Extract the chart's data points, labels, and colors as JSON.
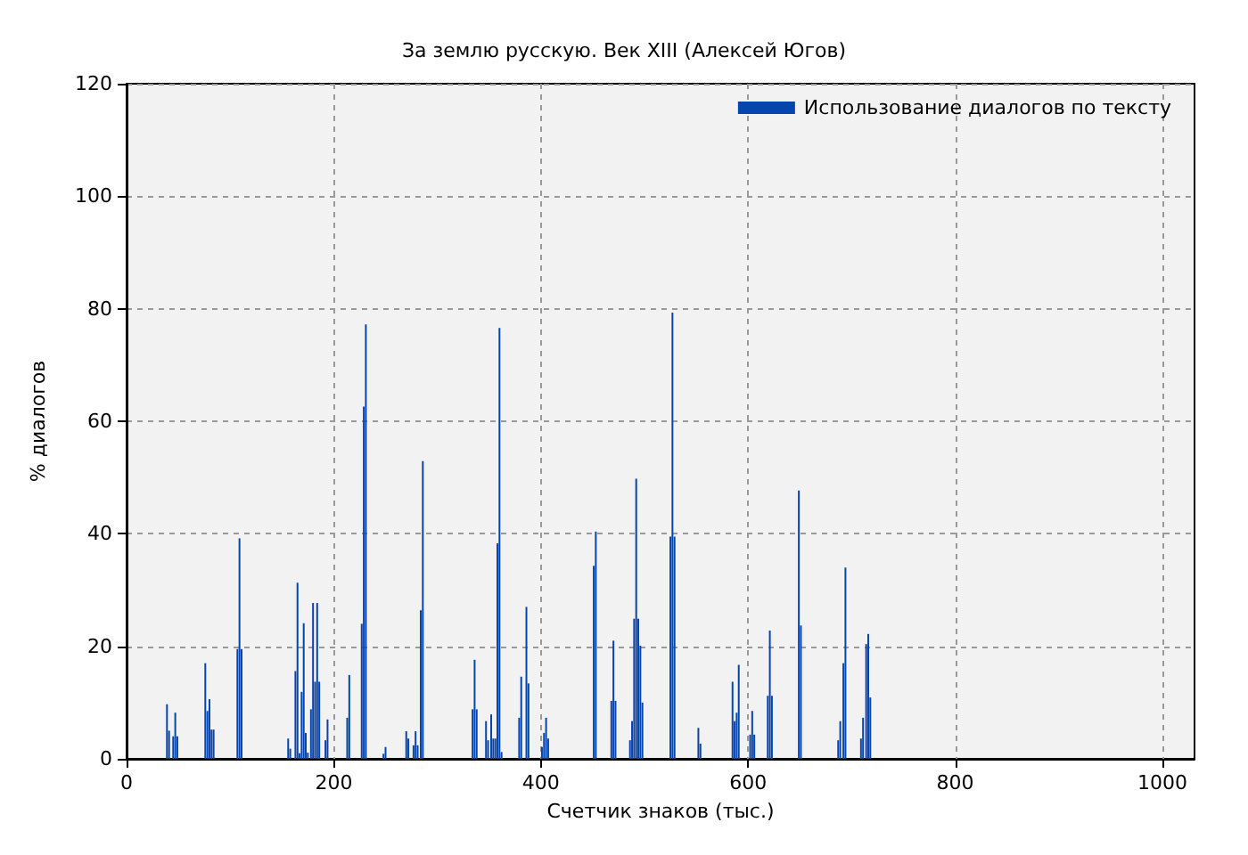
{
  "chart_data": {
    "type": "bar",
    "title": "За землю русскую. Век XIII (Алексей Югов)",
    "xlabel": "Счетчик знаков (тыс.)",
    "ylabel": "% диалогов",
    "x": [
      39,
      41,
      45,
      47,
      49,
      76,
      78,
      80,
      82,
      84,
      107,
      109,
      111,
      156,
      158,
      163,
      165,
      167,
      169,
      171,
      173,
      175,
      178,
      180,
      182,
      184,
      186,
      192,
      194,
      213,
      215,
      227,
      229,
      231,
      248,
      250,
      270,
      272,
      277,
      279,
      281,
      284,
      286,
      334,
      336,
      338,
      347,
      349,
      352,
      354,
      356,
      358,
      360,
      362,
      379,
      381,
      386,
      388,
      401,
      403,
      405,
      407,
      451,
      453,
      468,
      470,
      472,
      486,
      488,
      490,
      492,
      494,
      496,
      498,
      525,
      527,
      529,
      552,
      554,
      585,
      587,
      589,
      591,
      602,
      604,
      606,
      619,
      621,
      623,
      649,
      651,
      687,
      689,
      692,
      694,
      709,
      711,
      714,
      716,
      718
    ],
    "series": [
      {
        "name": "Использование диалогов по тексту",
        "color": "#0645ad",
        "values": [
          9.7,
          5,
          4,
          8.2,
          4,
          17,
          8.5,
          10.6,
          5.2,
          5.2,
          19.5,
          39.2,
          19.5,
          3.6,
          1.8,
          15.6,
          31.3,
          1,
          11.9,
          24.1,
          4.6,
          1.1,
          8.8,
          27.7,
          13.7,
          27.7,
          13.7,
          3.3,
          7,
          7.3,
          14.9,
          24,
          62.6,
          77.2,
          0.9,
          2.1,
          4.9,
          3.6,
          2.4,
          4.9,
          2.4,
          26.4,
          52.9,
          8.8,
          17.6,
          8.8,
          6.7,
          3.3,
          7.9,
          3.6,
          3.6,
          38.3,
          76.6,
          1.2,
          7.3,
          14.6,
          27,
          13.4,
          2.1,
          4.6,
          7.3,
          3.6,
          34.3,
          40.4,
          10.3,
          21,
          10.3,
          3.3,
          6.7,
          24.9,
          49.8,
          24.9,
          20.1,
          10,
          39.5,
          79.3,
          39.5,
          5.5,
          2.7,
          13.7,
          6.7,
          8.2,
          16.7,
          4.3,
          8.5,
          4.3,
          11.2,
          22.8,
          11.2,
          47.7,
          23.7,
          3.3,
          6.7,
          17,
          34,
          3.6,
          7.3,
          20.4,
          22.2,
          10.9
        ]
      }
    ],
    "xlim": [
      0,
      1031
    ],
    "xticks": [
      0,
      200,
      400,
      600,
      800,
      {
        "value": 1000,
        "label": "1000"
      }
    ],
    "ylim": [
      0,
      120
    ],
    "yticks": [
      0,
      20,
      40,
      60,
      80,
      100,
      120
    ],
    "grid": true,
    "legend": "top right"
  }
}
